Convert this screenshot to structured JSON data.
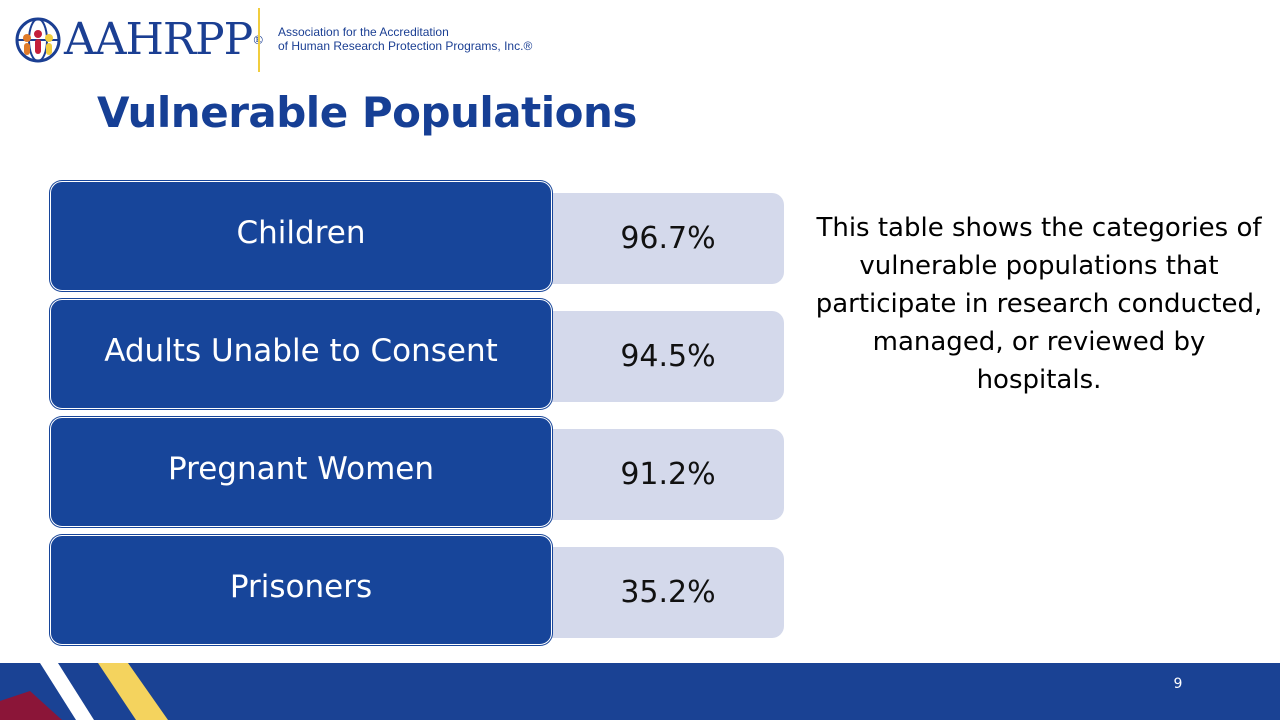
{
  "header": {
    "logo_text": "AAHRPP",
    "logo_registered": "®",
    "tagline_line1": "Association for the Accreditation",
    "tagline_line2": "of Human Research Protection Programs, Inc.®"
  },
  "slide": {
    "title": "Vulnerable Populations",
    "description": "This table shows the categories of vulnerable populations that participate in research conducted, managed, or reviewed by hospitals.",
    "page_number": "9"
  },
  "table": {
    "rows": [
      {
        "label": "Children",
        "value": "96.7%"
      },
      {
        "label": "Adults Unable to Consent",
        "value": "94.5%"
      },
      {
        "label": "Pregnant Women",
        "value": "91.2%"
      },
      {
        "label": "Prisoners",
        "value": "35.2%"
      }
    ]
  },
  "colors": {
    "brand_blue": "#17459a",
    "value_bg": "#d4d9eb",
    "accent_yellow": "#f4d35e",
    "accent_red": "#8b1538"
  }
}
